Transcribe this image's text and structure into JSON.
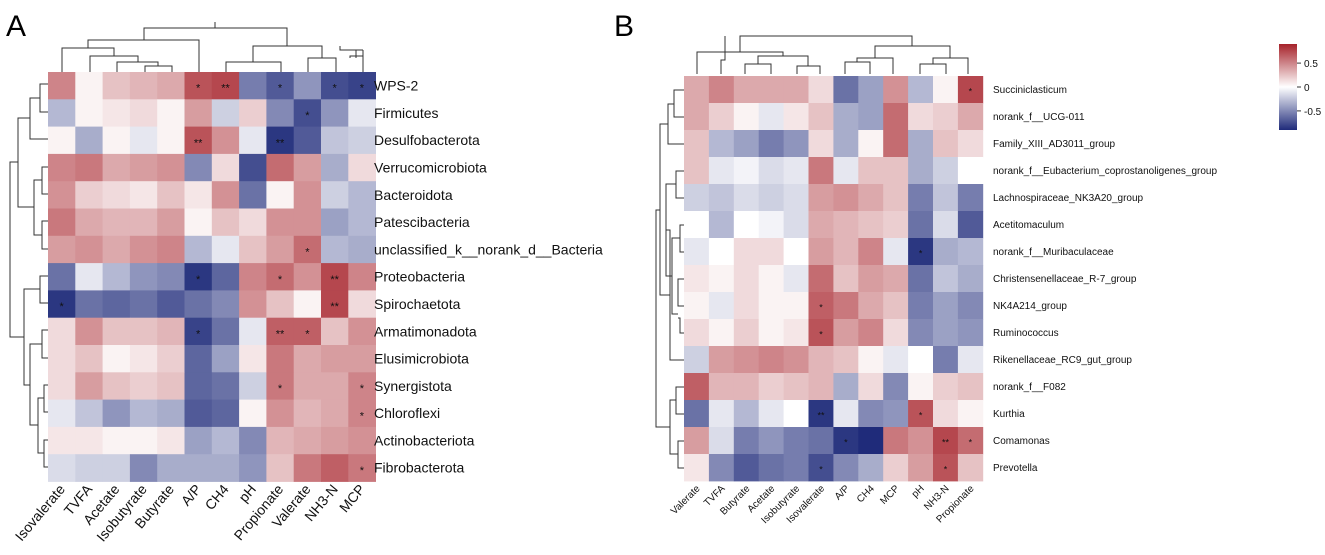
{
  "panels": [
    {
      "letter": "A",
      "chart_data": {
        "type": "heatmap",
        "title": "",
        "columns": [
          "Isovalerate",
          "TVFA",
          "Acetate",
          "Isobutyrate",
          "Butyrate",
          "A/P",
          "CH4",
          "pH",
          "Propionate",
          "Valerate",
          "NH3-N",
          "MCP"
        ],
        "rows": [
          "WPS-2",
          "Firmicutes",
          "Desulfobacterota",
          "Verrucomicrobiota",
          "Bacteroidota",
          "Patescibacteria",
          "unclassified_k__norank_d__Bacteria",
          "Proteobacteria",
          "Spirochaetota",
          "Armatimonadota",
          "Elusimicrobiota",
          "Synergistota",
          "Chloroflexi",
          "Actinobacteriota",
          "Fibrobacterota"
        ],
        "values": [
          [
            0.5,
            0.05,
            0.25,
            0.3,
            0.35,
            0.7,
            0.75,
            -0.55,
            -0.7,
            -0.45,
            -0.75,
            -0.8
          ],
          [
            -0.3,
            0.05,
            0.1,
            0.15,
            0.05,
            0.4,
            -0.2,
            0.2,
            -0.5,
            -0.75,
            -0.45,
            -0.1
          ],
          [
            0.05,
            -0.35,
            0.05,
            -0.1,
            0.05,
            0.7,
            0.45,
            -0.1,
            -0.85,
            -0.7,
            -0.25,
            -0.2
          ],
          [
            0.5,
            0.55,
            0.35,
            0.4,
            0.45,
            -0.5,
            0.15,
            -0.75,
            0.6,
            0.4,
            -0.35,
            0.15
          ],
          [
            0.45,
            0.2,
            0.15,
            0.1,
            0.25,
            0.1,
            0.45,
            -0.6,
            0.05,
            0.45,
            -0.2,
            -0.3
          ],
          [
            0.55,
            0.35,
            0.3,
            0.3,
            0.4,
            0.05,
            0.25,
            0.15,
            0.45,
            0.45,
            -0.4,
            -0.3
          ],
          [
            0.4,
            0.45,
            0.35,
            0.45,
            0.5,
            -0.3,
            -0.1,
            0.25,
            0.4,
            0.6,
            -0.3,
            -0.35
          ],
          [
            -0.6,
            -0.1,
            -0.3,
            -0.45,
            -0.5,
            -0.85,
            -0.65,
            0.5,
            0.6,
            0.45,
            0.75,
            0.5
          ],
          [
            -0.85,
            -0.6,
            -0.65,
            -0.6,
            -0.7,
            -0.6,
            -0.5,
            0.45,
            0.25,
            0.05,
            0.75,
            0.15
          ],
          [
            0.15,
            0.45,
            0.25,
            0.25,
            0.3,
            -0.8,
            -0.6,
            -0.1,
            0.65,
            0.65,
            0.25,
            0.45
          ],
          [
            0.15,
            0.25,
            0.05,
            0.1,
            0.2,
            -0.65,
            -0.4,
            0.1,
            0.55,
            0.35,
            0.4,
            0.4
          ],
          [
            0.15,
            0.4,
            0.25,
            0.2,
            0.25,
            -0.65,
            -0.6,
            -0.2,
            0.55,
            0.35,
            0.35,
            0.5
          ],
          [
            -0.1,
            -0.25,
            -0.45,
            -0.3,
            -0.35,
            -0.7,
            -0.65,
            0.05,
            0.45,
            0.3,
            0.35,
            0.5
          ],
          [
            0.1,
            0.1,
            0.05,
            0.05,
            0.1,
            -0.4,
            -0.3,
            -0.5,
            0.3,
            0.35,
            0.4,
            0.45
          ],
          [
            -0.15,
            -0.2,
            -0.2,
            -0.5,
            -0.35,
            -0.35,
            -0.35,
            -0.45,
            0.25,
            0.55,
            0.65,
            0.55
          ]
        ],
        "significance": [
          [
            "",
            "",
            "",
            "",
            "",
            "*",
            "**",
            "",
            "*",
            "",
            "*",
            "*"
          ],
          [
            "",
            "",
            "",
            "",
            "",
            "",
            "",
            "",
            "",
            "*",
            "",
            ""
          ],
          [
            "",
            "",
            "",
            "",
            "",
            "**",
            "",
            "",
            "**",
            "",
            "",
            ""
          ],
          [
            "",
            "",
            "",
            "",
            "",
            "",
            "",
            "",
            "",
            "",
            "",
            ""
          ],
          [
            "",
            "",
            "",
            "",
            "",
            "",
            "",
            "",
            "",
            "",
            "",
            ""
          ],
          [
            "",
            "",
            "",
            "",
            "",
            "",
            "",
            "",
            "",
            "",
            "",
            ""
          ],
          [
            "",
            "",
            "",
            "",
            "",
            "",
            "",
            "",
            "",
            "*",
            "",
            ""
          ],
          [
            "",
            "",
            "",
            "",
            "",
            "*",
            "",
            "",
            "*",
            "",
            "**",
            ""
          ],
          [
            "*",
            "",
            "",
            "",
            "",
            "",
            "",
            "",
            "",
            "",
            "**",
            ""
          ],
          [
            "",
            "",
            "",
            "",
            "",
            "*",
            "",
            "",
            "**",
            "*",
            "",
            ""
          ],
          [
            "",
            "",
            "",
            "",
            "",
            "",
            "",
            "",
            "",
            "",
            "",
            ""
          ],
          [
            "",
            "",
            "",
            "",
            "",
            "",
            "",
            "",
            "*",
            "",
            "",
            "*"
          ],
          [
            "",
            "",
            "",
            "",
            "",
            "",
            "",
            "",
            "",
            "",
            "",
            "*"
          ],
          [
            "",
            "",
            "",
            "",
            "",
            "",
            "",
            "",
            "",
            "",
            "",
            ""
          ],
          [
            "",
            "",
            "",
            "",
            "",
            "",
            "",
            "",
            "",
            "",
            "",
            "*"
          ]
        ]
      }
    },
    {
      "letter": "B",
      "chart_data": {
        "type": "heatmap",
        "title": "",
        "columns": [
          "Valerate",
          "TVFA",
          "Butyrate",
          "Acetate",
          "Isobutyrate",
          "Isovalerate",
          "A/P",
          "CH4",
          "MCP",
          "pH",
          "NH3-N",
          "Propionate"
        ],
        "rows": [
          "Succiniclasticum",
          "norank_f__UCG-011",
          "Family_XIII_AD3011_group",
          "norank_f__Eubacterium_coprostanoligenes_group",
          "Lachnospiraceae_NK3A20_group",
          "Acetitomaculum",
          "norank_f__Muribaculaceae",
          "Christensenellaceae_R-7_group",
          "NK4A214_group",
          "Ruminococcus",
          "Rikenellaceae_RC9_gut_group",
          "norank_f__F082",
          "Kurthia",
          "Comamonas",
          "Prevotella"
        ],
        "values": [
          [
            0.35,
            0.5,
            0.35,
            0.35,
            0.35,
            0.15,
            -0.6,
            -0.4,
            0.45,
            -0.3,
            0.05,
            0.75
          ],
          [
            0.35,
            0.2,
            0.05,
            -0.1,
            0.1,
            0.25,
            -0.35,
            -0.4,
            0.6,
            0.15,
            0.2,
            0.35
          ],
          [
            0.25,
            -0.3,
            -0.4,
            -0.55,
            -0.45,
            0.15,
            -0.35,
            0.05,
            0.6,
            -0.35,
            0.25,
            0.15
          ],
          [
            0.25,
            -0.1,
            -0.05,
            -0.15,
            -0.1,
            0.55,
            -0.1,
            0.25,
            0.25,
            -0.35,
            -0.2,
            0.0
          ],
          [
            -0.2,
            -0.25,
            -0.15,
            -0.2,
            -0.15,
            0.4,
            0.45,
            0.35,
            0.25,
            -0.55,
            -0.25,
            -0.55
          ],
          [
            0.0,
            -0.3,
            0.0,
            -0.05,
            -0.15,
            0.35,
            0.3,
            0.25,
            0.2,
            -0.6,
            -0.15,
            -0.7
          ],
          [
            -0.1,
            0.0,
            0.15,
            0.15,
            0.0,
            0.4,
            0.3,
            0.5,
            -0.1,
            -0.85,
            -0.35,
            -0.3
          ],
          [
            0.1,
            0.05,
            0.15,
            0.05,
            -0.1,
            0.6,
            0.25,
            0.4,
            0.35,
            -0.6,
            -0.25,
            -0.35
          ],
          [
            0.05,
            -0.1,
            0.15,
            0.05,
            0.05,
            0.65,
            0.55,
            0.35,
            0.25,
            -0.55,
            -0.4,
            -0.5
          ],
          [
            0.15,
            0.05,
            0.2,
            0.05,
            0.1,
            0.7,
            0.4,
            0.5,
            0.15,
            -0.5,
            -0.4,
            -0.45
          ],
          [
            -0.2,
            0.4,
            0.45,
            0.5,
            0.45,
            0.3,
            0.25,
            0.05,
            -0.1,
            0.0,
            -0.55,
            -0.1
          ],
          [
            0.65,
            0.3,
            0.3,
            0.2,
            0.25,
            0.3,
            -0.35,
            0.15,
            -0.5,
            0.05,
            0.2,
            0.25
          ],
          [
            -0.6,
            -0.1,
            -0.3,
            -0.1,
            0.0,
            -0.85,
            -0.1,
            -0.5,
            -0.45,
            0.7,
            0.15,
            0.05
          ],
          [
            0.4,
            -0.15,
            -0.55,
            -0.45,
            -0.55,
            -0.6,
            -0.85,
            -0.9,
            0.55,
            0.45,
            0.75,
            0.6
          ],
          [
            0.1,
            -0.5,
            -0.7,
            -0.6,
            -0.55,
            -0.75,
            -0.5,
            -0.35,
            0.2,
            0.4,
            0.7,
            0.25
          ]
        ],
        "significance": [
          [
            "",
            "",
            "",
            "",
            "",
            "",
            "",
            "",
            "",
            "",
            "",
            "*"
          ],
          [
            "",
            "",
            "",
            "",
            "",
            "",
            "",
            "",
            "",
            "",
            "",
            ""
          ],
          [
            "",
            "",
            "",
            "",
            "",
            "",
            "",
            "",
            "",
            "",
            "",
            ""
          ],
          [
            "",
            "",
            "",
            "",
            "",
            "",
            "",
            "",
            "",
            "",
            "",
            ""
          ],
          [
            "",
            "",
            "",
            "",
            "",
            "",
            "",
            "",
            "",
            "",
            "",
            ""
          ],
          [
            "",
            "",
            "",
            "",
            "",
            "",
            "",
            "",
            "",
            "",
            "",
            ""
          ],
          [
            "",
            "",
            "",
            "",
            "",
            "",
            "",
            "",
            "",
            "*",
            "",
            ""
          ],
          [
            "",
            "",
            "",
            "",
            "",
            "",
            "",
            "",
            "",
            "",
            "",
            ""
          ],
          [
            "",
            "",
            "",
            "",
            "",
            "*",
            "",
            "",
            "",
            "",
            "",
            ""
          ],
          [
            "",
            "",
            "",
            "",
            "",
            "*",
            "",
            "",
            "",
            "",
            "",
            ""
          ],
          [
            "",
            "",
            "",
            "",
            "",
            "",
            "",
            "",
            "",
            "",
            "",
            ""
          ],
          [
            "",
            "",
            "",
            "",
            "",
            "",
            "",
            "",
            "",
            "",
            "",
            ""
          ],
          [
            "",
            "",
            "",
            "",
            "",
            "**",
            "",
            "",
            "",
            "*",
            "",
            ""
          ],
          [
            "",
            "",
            "",
            "",
            "",
            "",
            "*",
            "",
            "",
            "",
            "**",
            "*"
          ],
          [
            "",
            "",
            "",
            "",
            "",
            "*",
            "",
            "",
            "",
            "",
            "*",
            ""
          ]
        ],
        "legend": {
          "ticks": [
            "0.5",
            "0",
            "-0.5"
          ],
          "range": [
            -0.9,
            0.9
          ]
        }
      }
    }
  ],
  "colors": {
    "neg": "#1f2b7a",
    "mid": "#ffffff",
    "pos": "#a6222a"
  }
}
